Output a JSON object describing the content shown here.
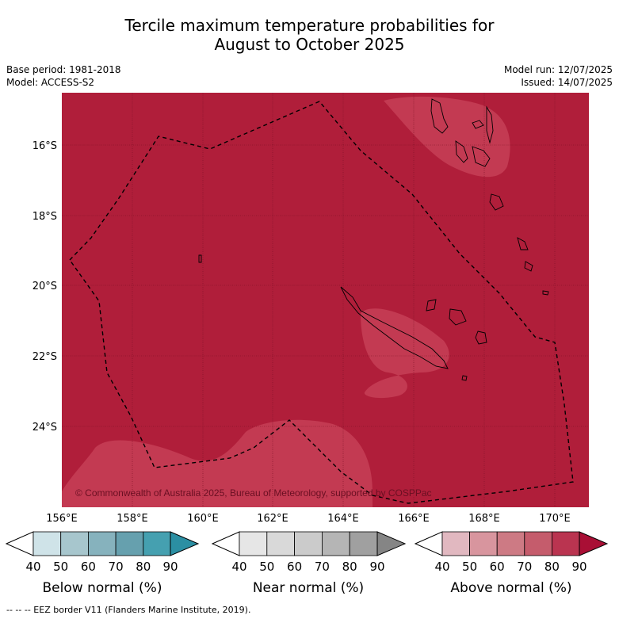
{
  "title_line1": "Tercile maximum temperature probabilities for",
  "title_line2": "August to October 2025",
  "meta_left": {
    "base_period": "Base period: 1981-2018",
    "model": "Model: ACCESS-S2"
  },
  "meta_right": {
    "model_run": "Model run: 12/07/2025",
    "issued": "Issued: 14/07/2025"
  },
  "map": {
    "background_color": "#b01e3a",
    "lighter_patch_color": "#c33a52",
    "lat_labels": [
      "16°S",
      "18°S",
      "20°S",
      "22°S",
      "24°S"
    ],
    "lon_labels": [
      "156°E",
      "158°E",
      "160°E",
      "162°E",
      "164°E",
      "166°E",
      "168°E",
      "170°E"
    ],
    "copyright": "© Commonwealth of Australia 2025, Bureau of Meteorology, supported by COSPPac"
  },
  "legends": [
    {
      "label": "Below normal (%)",
      "ticks": [
        "40",
        "50",
        "60",
        "70",
        "80",
        "90"
      ],
      "colors": [
        "#cfe3e8",
        "#a7c6cd",
        "#86b2bd",
        "#66a0ae",
        "#45a0b0",
        "#2b8fa3"
      ]
    },
    {
      "label": "Near normal (%)",
      "ticks": [
        "40",
        "50",
        "60",
        "70",
        "80",
        "90"
      ],
      "colors": [
        "#e6e6e6",
        "#d9d9d9",
        "#cbcbcb",
        "#b5b5b5",
        "#a0a0a0",
        "#858585"
      ]
    },
    {
      "label": "Above normal (%)",
      "ticks": [
        "40",
        "50",
        "60",
        "70",
        "80",
        "90"
      ],
      "colors": [
        "#e1b8c0",
        "#d8959e",
        "#cd7a84",
        "#c55c6c",
        "#ba3450",
        "#a90f35"
      ]
    }
  ],
  "footnote": "--  --  -- EEZ border V11 (Flanders Marine Institute, 2019)."
}
